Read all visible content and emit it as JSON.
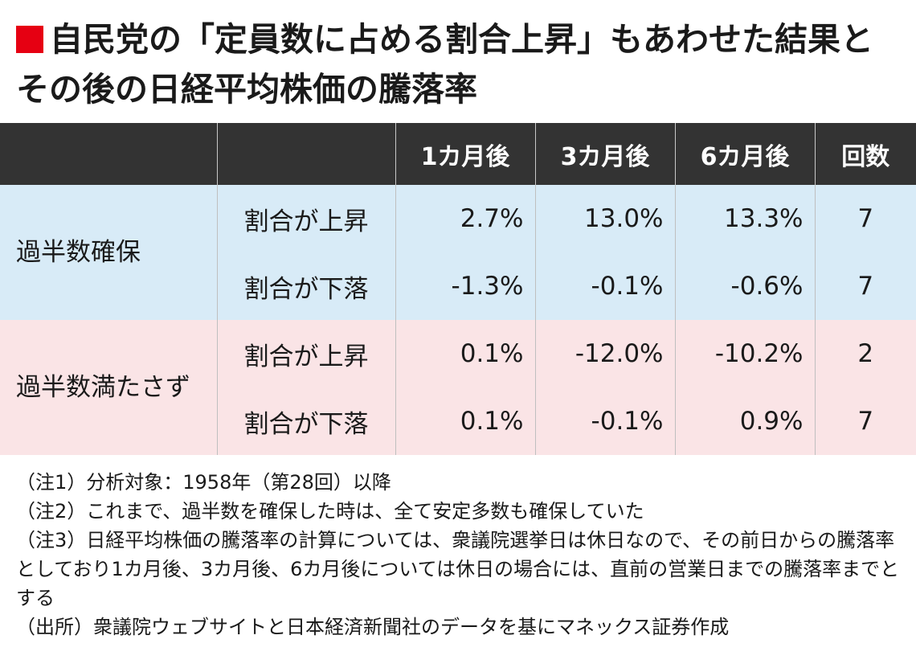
{
  "title": "自民党の「定員数に占める割合上昇」もあわせた結果とその後の日経平均株価の騰落率",
  "colors": {
    "marker": "#e60012",
    "header_bg": "#333333",
    "blue_bg": "#d8ebf7",
    "pink_bg": "#fae4e6"
  },
  "table": {
    "headers": [
      "",
      "",
      "1カ月後",
      "3カ月後",
      "6カ月後",
      "回数"
    ],
    "groups": [
      {
        "label": "過半数確保",
        "rows": [
          {
            "sub": "割合が上昇",
            "m1": "2.7%",
            "m3": "13.0%",
            "m6": "13.3%",
            "count": "7"
          },
          {
            "sub": "割合が下落",
            "m1": "-1.3%",
            "m3": "-0.1%",
            "m6": "-0.6%",
            "count": "7"
          }
        ]
      },
      {
        "label": "過半数満たさず",
        "rows": [
          {
            "sub": "割合が上昇",
            "m1": "0.1%",
            "m3": "-12.0%",
            "m6": "-10.2%",
            "count": "2"
          },
          {
            "sub": "割合が下落",
            "m1": "0.1%",
            "m3": "-0.1%",
            "m6": "0.9%",
            "count": "7"
          }
        ]
      }
    ]
  },
  "notes": [
    "（注1）分析対象：1958年（第28回）以降",
    "（注2）これまで、過半数を確保した時は、全て安定多数も確保していた",
    "（注3）日経平均株価の騰落率の計算については、衆議院選挙日は休日なので、その前日からの騰落率としており1カ月後、3カ月後、6カ月後については休日の場合には、直前の営業日までの騰落率までとする",
    "（出所）衆議院ウェブサイトと日本経済新聞社のデータを基にマネックス証券作成"
  ]
}
